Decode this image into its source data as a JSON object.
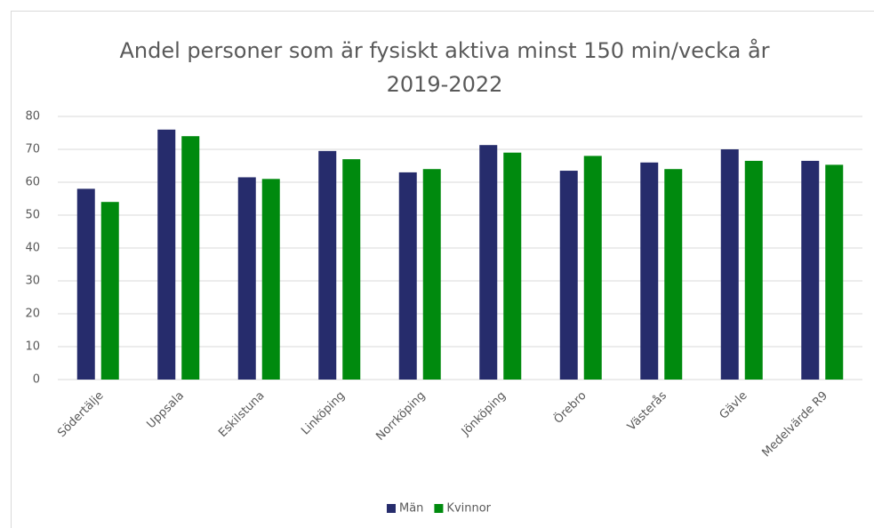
{
  "chart_data": {
    "type": "bar",
    "title": "Andel personer som är fysiskt aktiva minst 150 min/vecka år 2019-2022",
    "categories": [
      "Södertälje",
      "Uppsala",
      "Eskilstuna",
      "Linköping",
      "Norrköping",
      "Jönköping",
      "Örebro",
      "Västerås",
      "Gävle",
      "Medelvärde R9"
    ],
    "series": [
      {
        "name": "Män",
        "color": "#262c6c",
        "values": [
          58,
          76,
          61.5,
          69.5,
          63,
          71.3,
          63.5,
          66,
          70,
          66.5
        ]
      },
      {
        "name": "Kvinnor",
        "color": "#008a0e",
        "values": [
          54,
          74,
          61,
          67,
          64,
          69,
          68,
          64,
          66.5,
          65.3
        ]
      }
    ],
    "ylim": [
      0,
      80
    ],
    "yticks": [
      0,
      10,
      20,
      30,
      40,
      50,
      60,
      70,
      80
    ],
    "grid": true,
    "legend": "bottom"
  }
}
